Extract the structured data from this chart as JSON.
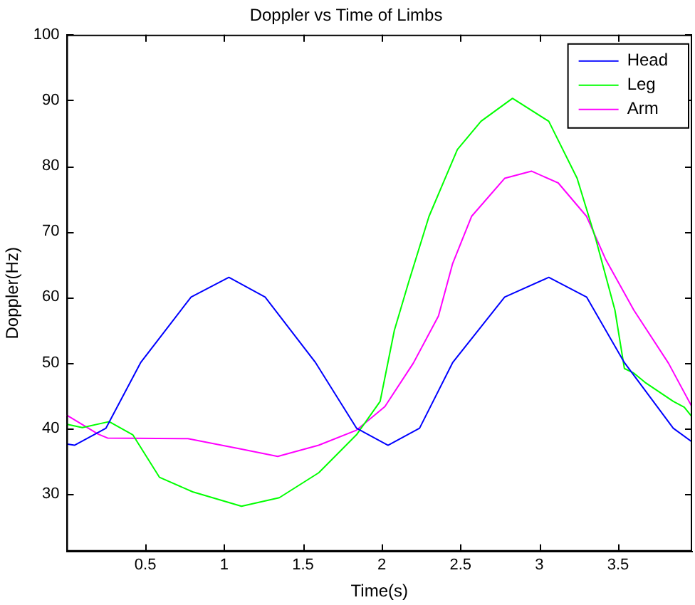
{
  "chart_data": {
    "type": "line",
    "title": "Doppler vs Time of Limbs",
    "xlabel": "Time(s)",
    "ylabel": "Doppler(Hz)",
    "xlim": [
      0,
      3.97
    ],
    "ylim": [
      21.2,
      100
    ],
    "xticks": [
      0.5,
      1,
      1.5,
      2,
      2.5,
      3,
      3.5
    ],
    "yticks": [
      30,
      40,
      50,
      60,
      70,
      80,
      90,
      100
    ],
    "grid": false,
    "legend": "top right",
    "marker": "none",
    "line_style": "solid",
    "series": [
      {
        "name": "Head",
        "color": "#0000ff",
        "x": [
          0,
          0.05,
          0.25,
          0.47,
          0.79,
          1.03,
          1.26,
          1.58,
          1.84,
          2.04,
          2.24,
          2.45,
          2.78,
          3.06,
          3.3,
          3.54,
          3.85,
          3.97
        ],
        "values": [
          37.6,
          37.4,
          40,
          50,
          60,
          63,
          60,
          50,
          40,
          37.4,
          40,
          50,
          60,
          63,
          60,
          50,
          40,
          37.9
        ]
      },
      {
        "name": "Leg",
        "color": "#00ff00",
        "x": [
          0,
          0.1,
          0.27,
          0.42,
          0.59,
          0.8,
          1.11,
          1.35,
          1.6,
          1.84,
          1.99,
          2.08,
          2.17,
          2.3,
          2.48,
          2.63,
          2.83,
          3.06,
          3.24,
          3.36,
          3.48,
          3.54,
          3.6,
          3.67,
          3.85,
          3.92,
          3.97
        ],
        "values": [
          40.6,
          40.1,
          41,
          39,
          32.5,
          30.3,
          28.1,
          29.4,
          33.2,
          39,
          44.1,
          54.9,
          62.2,
          72.3,
          82.5,
          86.8,
          90.3,
          86.8,
          78.1,
          68.7,
          58,
          49.1,
          48.4,
          47,
          44.1,
          43.2,
          41.7
        ]
      },
      {
        "name": "Arm",
        "color": "#ff00ff",
        "x": [
          0,
          0.2,
          0.26,
          0.77,
          1.11,
          1.34,
          1.6,
          1.84,
          2.02,
          2.2,
          2.36,
          2.45,
          2.57,
          2.78,
          2.95,
          3.12,
          3.3,
          3.42,
          3.6,
          3.82,
          3.97
        ],
        "values": [
          42,
          39.1,
          38.5,
          38.4,
          36.8,
          35.7,
          37.4,
          39.7,
          43.3,
          49.9,
          57.1,
          65.1,
          72.3,
          78.1,
          79.2,
          77.4,
          72.3,
          65.8,
          58,
          49.9,
          43.2
        ]
      }
    ]
  }
}
